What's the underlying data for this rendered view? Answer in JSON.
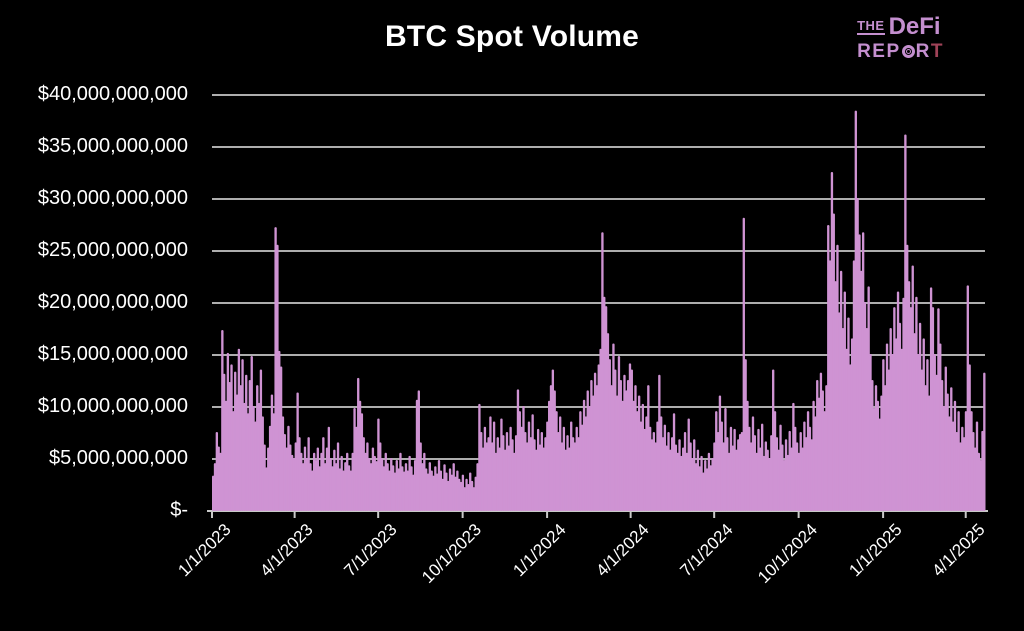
{
  "title": "BTC Spot Volume",
  "logo": {
    "the": "THE",
    "defi": "DeFi",
    "rep": "REP",
    "r": "R",
    "t": "T"
  },
  "colors": {
    "background": "#000000",
    "bar": "#cf93d3",
    "grid": "#aeaeae",
    "axis": "#c9c9c9",
    "text": "#ffffff",
    "logo": "#c48fcf",
    "logo_t": "#a04358"
  },
  "chart_data": {
    "type": "bar",
    "title": "BTC Spot Volume",
    "xlabel": "",
    "ylabel": "",
    "unit": "USD billions",
    "interval_days": 2,
    "start_label": "1/1/2023",
    "end_label": "4/1/2025 (+3 weeks)",
    "ylim": [
      0,
      40000000000
    ],
    "grid": true,
    "legend": "none",
    "x_label_rotation": -45,
    "y_ticks": [
      {
        "label": "$40,000,000,000",
        "value": 40
      },
      {
        "label": "$35,000,000,000",
        "value": 35
      },
      {
        "label": "$30,000,000,000",
        "value": 30
      },
      {
        "label": "$25,000,000,000",
        "value": 25
      },
      {
        "label": "$20,000,000,000",
        "value": 20
      },
      {
        "label": "$15,000,000,000",
        "value": 15
      },
      {
        "label": "$10,000,000,000",
        "value": 10
      },
      {
        "label": "$5,000,000,000",
        "value": 5
      },
      {
        "label": "$-",
        "value": 0
      }
    ],
    "x_ticks": [
      {
        "label": "1/1/2023",
        "day": 0
      },
      {
        "label": "4/1/2023",
        "day": 90
      },
      {
        "label": "7/1/2023",
        "day": 181
      },
      {
        "label": "10/1/2023",
        "day": 273
      },
      {
        "label": "1/1/2024",
        "day": 365
      },
      {
        "label": "4/1/2024",
        "day": 456
      },
      {
        "label": "7/1/2024",
        "day": 547
      },
      {
        "label": "10/1/2024",
        "day": 639
      },
      {
        "label": "1/1/2025",
        "day": 731
      },
      {
        "label": "4/1/2025",
        "day": 821
      }
    ],
    "values": [
      3.4,
      4.6,
      7.6,
      6.2,
      5.6,
      17.4,
      13.2,
      10.6,
      15.2,
      12.4,
      14.1,
      9.6,
      13.4,
      11.2,
      15.6,
      12.1,
      14.6,
      10.4,
      13.1,
      9.4,
      12.6,
      14.9,
      10.1,
      8.6,
      12.1,
      10.4,
      13.6,
      9.1,
      6.4,
      4.2,
      6.1,
      8.2,
      11.2,
      9.4,
      27.3,
      25.6,
      15.4,
      13.9,
      9.1,
      7.4,
      6.1,
      8.2,
      6.4,
      5.4,
      5.1,
      6.6,
      11.4,
      7.1,
      5.6,
      4.6,
      6.2,
      5.1,
      7.1,
      4.6,
      3.9,
      5.6,
      4.9,
      6.1,
      4.3,
      5.6,
      7.1,
      4.6,
      6.1,
      8.1,
      5.1,
      4.3,
      5.9,
      4.6,
      6.6,
      4.1,
      5.3,
      3.9,
      4.7,
      5.6,
      4.4,
      3.9,
      5.6,
      9.9,
      8.1,
      12.8,
      10.6,
      9.4,
      7.1,
      5.6,
      6.6,
      5.1,
      4.6,
      6.1,
      5.3,
      4.8,
      8.9,
      6.6,
      5.1,
      4.3,
      5.6,
      4.6,
      3.9,
      5.1,
      4.4,
      3.7,
      4.9,
      4.1,
      5.6,
      4.3,
      3.8,
      4.6,
      3.9,
      5.3,
      4.3,
      3.5,
      4.9,
      10.7,
      11.6,
      6.6,
      4.6,
      5.6,
      4.1,
      3.6,
      4.7,
      3.9,
      3.4,
      4.3,
      3.6,
      4.9,
      3.9,
      3.1,
      4.5,
      3.7,
      2.9,
      4.1,
      3.5,
      4.6,
      3.3,
      3.9,
      3.1,
      2.8,
      3.5,
      2.3,
      3.1,
      2.6,
      3.7,
      2.9,
      2.3,
      3.3,
      4.6,
      10.3,
      7.6,
      6.1,
      8.1,
      6.6,
      7.1,
      9.1,
      6.6,
      8.6,
      5.6,
      7.1,
      6.1,
      8.9,
      7.3,
      5.9,
      7.6,
      6.3,
      8.1,
      6.9,
      5.6,
      7.3,
      11.7,
      9.6,
      8.1,
      10.1,
      7.6,
      6.6,
      8.6,
      7.1,
      9.3,
      6.9,
      5.9,
      7.9,
      6.4,
      7.6,
      6.1,
      7.1,
      8.6,
      10.6,
      12.1,
      13.6,
      11.6,
      9.6,
      7.6,
      9.1,
      6.6,
      8.1,
      5.9,
      7.3,
      6.1,
      8.6,
      7.1,
      6.6,
      8.1,
      7.1,
      9.6,
      8.3,
      10.7,
      9.1,
      11.6,
      10.1,
      12.6,
      11.1,
      13.3,
      12.1,
      14.1,
      15.6,
      26.8,
      20.6,
      19.7,
      17.1,
      14.6,
      12.1,
      16.1,
      13.6,
      11.1,
      14.9,
      12.6,
      10.6,
      13.1,
      11.6,
      12.6,
      14.2,
      13.6,
      10.6,
      12.1,
      9.6,
      11.1,
      8.6,
      10.3,
      7.9,
      9.1,
      12.1,
      8.1,
      6.9,
      7.6,
      6.6,
      8.6,
      13.1,
      9.1,
      7.1,
      8.3,
      6.3,
      7.6,
      5.9,
      7.1,
      9.4,
      6.4,
      5.6,
      6.9,
      5.3,
      6.1,
      7.6,
      5.6,
      8.9,
      6.6,
      5.1,
      6.9,
      4.6,
      5.9,
      4.3,
      5.3,
      3.7,
      4.9,
      4.1,
      5.6,
      4.4,
      5.1,
      6.6,
      9.6,
      7.6,
      11.1,
      8.6,
      6.6,
      9.9,
      7.1,
      5.6,
      8.1,
      6.3,
      7.9,
      5.9,
      6.9,
      7.4,
      7.6,
      28.2,
      14.6,
      10.6,
      8.1,
      6.6,
      9.1,
      7.3,
      5.6,
      7.9,
      6.1,
      8.4,
      5.3,
      6.7,
      5.9,
      5.1,
      7.3,
      13.6,
      9.6,
      7.1,
      5.9,
      8.3,
      6.4,
      4.9,
      6.9,
      5.4,
      7.7,
      6.1,
      10.4,
      8.1,
      6.6,
      5.6,
      7.6,
      6.1,
      8.6,
      7.1,
      9.6,
      8.1,
      6.9,
      10.6,
      9.1,
      12.6,
      10.9,
      13.3,
      11.6,
      9.6,
      12.1,
      27.5,
      24.1,
      32.6,
      28.6,
      22.1,
      25.6,
      19.1,
      23.1,
      17.6,
      21.1,
      15.6,
      18.6,
      14.1,
      16.6,
      24.1,
      38.5,
      30.1,
      26.6,
      23.1,
      26.8,
      20.1,
      17.6,
      21.6,
      15.1,
      12.6,
      9.9,
      12.1,
      10.6,
      8.9,
      11.1,
      14.6,
      12.1,
      16.1,
      13.6,
      17.6,
      15.1,
      19.6,
      16.6,
      21.1,
      18.1,
      15.6,
      20.5,
      36.2,
      25.6,
      22.1,
      19.6,
      23.6,
      17.1,
      20.6,
      15.1,
      18.1,
      13.6,
      16.6,
      12.1,
      14.6,
      11.1,
      21.5,
      19.6,
      15.1,
      13.1,
      19.5,
      16.1,
      12.6,
      10.1,
      13.9,
      11.3,
      9.1,
      11.9,
      8.6,
      10.6,
      7.6,
      9.6,
      6.6,
      8.1,
      7.1,
      9.6,
      21.7,
      14.1,
      9.6,
      7.6,
      6.1,
      8.6,
      5.6,
      4.9,
      7.7,
      13.3
    ]
  }
}
